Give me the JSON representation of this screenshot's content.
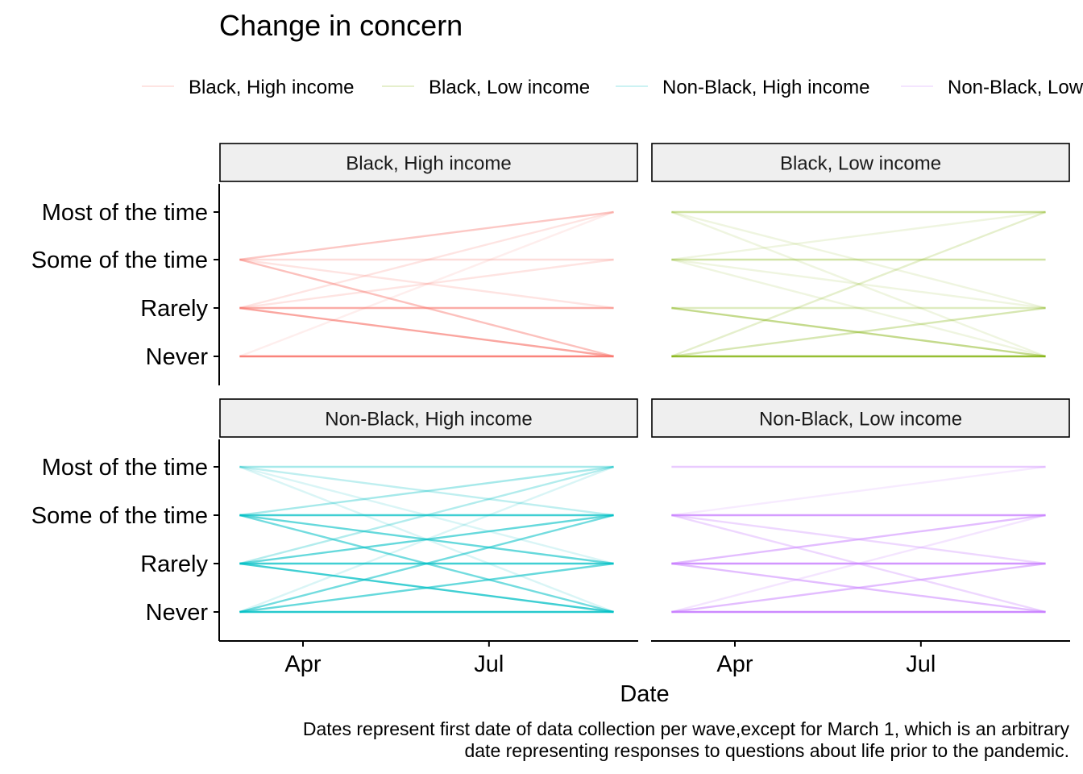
{
  "chart_data": {
    "type": "line",
    "title": "Change in concern",
    "xlabel": "Date",
    "ylabel": "",
    "caption_lines": [
      "Dates represent first date of data collection per wave,except for March 1, which is an arbitrary",
      "date representing responses to questions about life prior to the pandemic."
    ],
    "x_dates": [
      "2020-03-01",
      "2020-08-31"
    ],
    "x_ticks": [
      {
        "label": "Apr",
        "date": "2020-04-01"
      },
      {
        "label": "Jul",
        "date": "2020-07-01"
      }
    ],
    "xlim": [
      "2020-02-20",
      "2020-09-12"
    ],
    "y_levels": [
      "Never",
      "Rarely",
      "Some of the time",
      "Most of the time"
    ],
    "grid": false,
    "legend_position": "top",
    "series": [
      {
        "name": "Black, High income",
        "color": "#F8766D"
      },
      {
        "name": "Black, Low income",
        "color": "#7CAE00"
      },
      {
        "name": "Non-Black, High income",
        "color": "#00BFC4"
      },
      {
        "name": "Non-Black, Low income",
        "color": "#C77CFF"
      }
    ],
    "panels": [
      {
        "strip": "Black, High income",
        "color": "#F8766D",
        "segments": [
          {
            "from": "Some of the time",
            "to": "Most of the time",
            "opacity": 0.4
          },
          {
            "from": "Some of the time",
            "to": "Some of the time",
            "opacity": 0.25
          },
          {
            "from": "Some of the time",
            "to": "Rarely",
            "opacity": 0.2
          },
          {
            "from": "Some of the time",
            "to": "Never",
            "opacity": 0.45
          },
          {
            "from": "Rarely",
            "to": "Most of the time",
            "opacity": 0.2
          },
          {
            "from": "Rarely",
            "to": "Some of the time",
            "opacity": 0.2
          },
          {
            "from": "Rarely",
            "to": "Rarely",
            "opacity": 0.6
          },
          {
            "from": "Rarely",
            "to": "Never",
            "opacity": 0.65
          },
          {
            "from": "Never",
            "to": "Most of the time",
            "opacity": 0.12
          },
          {
            "from": "Never",
            "to": "Never",
            "opacity": 0.9
          }
        ]
      },
      {
        "strip": "Black, Low income",
        "color": "#7CAE00",
        "segments": [
          {
            "from": "Most of the time",
            "to": "Most of the time",
            "opacity": 0.4
          },
          {
            "from": "Most of the time",
            "to": "Rarely",
            "opacity": 0.12
          },
          {
            "from": "Most of the time",
            "to": "Never",
            "opacity": 0.12
          },
          {
            "from": "Some of the time",
            "to": "Most of the time",
            "opacity": 0.12
          },
          {
            "from": "Some of the time",
            "to": "Some of the time",
            "opacity": 0.35
          },
          {
            "from": "Some of the time",
            "to": "Rarely",
            "opacity": 0.12
          },
          {
            "from": "Some of the time",
            "to": "Never",
            "opacity": 0.12
          },
          {
            "from": "Rarely",
            "to": "Rarely",
            "opacity": 0.25
          },
          {
            "from": "Rarely",
            "to": "Never",
            "opacity": 0.45
          },
          {
            "from": "Never",
            "to": "Most of the time",
            "opacity": 0.2
          },
          {
            "from": "Never",
            "to": "Rarely",
            "opacity": 0.3
          },
          {
            "from": "Never",
            "to": "Never",
            "opacity": 0.8
          }
        ]
      },
      {
        "strip": "Non-Black, High income",
        "color": "#00BFC4",
        "segments": [
          {
            "from": "Most of the time",
            "to": "Most of the time",
            "opacity": 0.35
          },
          {
            "from": "Most of the time",
            "to": "Some of the time",
            "opacity": 0.25
          },
          {
            "from": "Most of the time",
            "to": "Rarely",
            "opacity": 0.15
          },
          {
            "from": "Most of the time",
            "to": "Never",
            "opacity": 0.15
          },
          {
            "from": "Some of the time",
            "to": "Most of the time",
            "opacity": 0.35
          },
          {
            "from": "Some of the time",
            "to": "Some of the time",
            "opacity": 0.75
          },
          {
            "from": "Some of the time",
            "to": "Rarely",
            "opacity": 0.6
          },
          {
            "from": "Some of the time",
            "to": "Never",
            "opacity": 0.55
          },
          {
            "from": "Rarely",
            "to": "Most of the time",
            "opacity": 0.3
          },
          {
            "from": "Rarely",
            "to": "Some of the time",
            "opacity": 0.6
          },
          {
            "from": "Rarely",
            "to": "Rarely",
            "opacity": 0.75
          },
          {
            "from": "Rarely",
            "to": "Never",
            "opacity": 0.75
          },
          {
            "from": "Never",
            "to": "Most of the time",
            "opacity": 0.15
          },
          {
            "from": "Never",
            "to": "Some of the time",
            "opacity": 0.55
          },
          {
            "from": "Never",
            "to": "Rarely",
            "opacity": 0.6
          },
          {
            "from": "Never",
            "to": "Never",
            "opacity": 0.85
          }
        ]
      },
      {
        "strip": "Non-Black, Low income",
        "color": "#C77CFF",
        "segments": [
          {
            "from": "Most of the time",
            "to": "Most of the time",
            "opacity": 0.4
          },
          {
            "from": "Some of the time",
            "to": "Most of the time",
            "opacity": 0.15
          },
          {
            "from": "Some of the time",
            "to": "Some of the time",
            "opacity": 0.75
          },
          {
            "from": "Some of the time",
            "to": "Rarely",
            "opacity": 0.3
          },
          {
            "from": "Some of the time",
            "to": "Never",
            "opacity": 0.3
          },
          {
            "from": "Rarely",
            "to": "Some of the time",
            "opacity": 0.5
          },
          {
            "from": "Rarely",
            "to": "Rarely",
            "opacity": 0.8
          },
          {
            "from": "Rarely",
            "to": "Never",
            "opacity": 0.5
          },
          {
            "from": "Never",
            "to": "Some of the time",
            "opacity": 0.2
          },
          {
            "from": "Never",
            "to": "Rarely",
            "opacity": 0.5
          },
          {
            "from": "Never",
            "to": "Never",
            "opacity": 0.9
          }
        ]
      }
    ]
  }
}
